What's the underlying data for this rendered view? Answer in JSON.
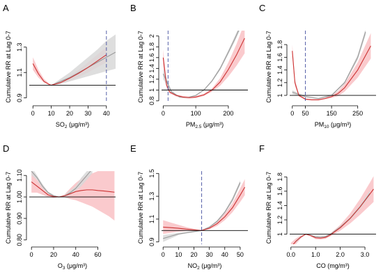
{
  "colors": {
    "red_line": "#cc3333",
    "red_band": "#f8b8bc",
    "gray_line": "#999999",
    "gray_band": "#d8d8d8",
    "ref_line": "#000000",
    "vline": "#5560a8"
  },
  "chart_data": [
    {
      "id": "A",
      "type": "line",
      "letter": "A",
      "ylabel": "Cumulative RR at Lag 0-7",
      "xlabel_main": "SO",
      "xlabel_sub": "2",
      "xlabel_unit": " (μg/m³)",
      "xlim": [
        -2,
        45
      ],
      "ylim": [
        0.86,
        1.43
      ],
      "xticks": [
        0,
        10,
        20,
        30,
        40
      ],
      "yticks": [
        0.9,
        1.1,
        1.3
      ],
      "ref_y": 1.0,
      "vline_x": 40,
      "gray": {
        "x": [
          10,
          15,
          20,
          25,
          30,
          35,
          40,
          45
        ],
        "y": [
          1.0,
          1.03,
          1.06,
          1.1,
          1.14,
          1.18,
          1.22,
          1.26
        ],
        "lo": [
          1.0,
          1.01,
          1.03,
          1.05,
          1.07,
          1.09,
          1.11,
          1.13
        ],
        "hi": [
          1.0,
          1.05,
          1.1,
          1.16,
          1.22,
          1.28,
          1.35,
          1.4
        ]
      },
      "red": {
        "x": [
          0,
          3,
          6,
          9,
          10,
          15,
          20,
          25,
          30,
          35,
          40
        ],
        "y": [
          1.17,
          1.09,
          1.03,
          1.005,
          1.0,
          1.02,
          1.055,
          1.095,
          1.14,
          1.19,
          1.24
        ],
        "lo": [
          1.12,
          1.06,
          1.02,
          1.0,
          1.0,
          1.01,
          1.035,
          1.065,
          1.1,
          1.14,
          1.18
        ],
        "hi": [
          1.22,
          1.12,
          1.05,
          1.01,
          1.0,
          1.03,
          1.07,
          1.12,
          1.18,
          1.24,
          1.3
        ]
      }
    },
    {
      "id": "B",
      "type": "line",
      "letter": "B",
      "ylabel": "Cumulative RR at Lag 0-7",
      "xlabel_main": "PM",
      "xlabel_sub": "2.5",
      "xlabel_unit": " (μg/m³)",
      "xlim": [
        -5,
        260
      ],
      "ylim": [
        0.76,
        2.1
      ],
      "xticks": [
        0,
        100,
        200
      ],
      "yticks": [
        0.8,
        1.0,
        1.2,
        1.4,
        1.6,
        1.8,
        2.0
      ],
      "ref_y": 1.0,
      "vline_x": 15,
      "gray": {
        "x": [
          0,
          25,
          50,
          75,
          100,
          125,
          150,
          175,
          200,
          220,
          235
        ],
        "y": [
          1.3,
          0.97,
          0.87,
          0.86,
          0.9,
          1.0,
          1.17,
          1.4,
          1.7,
          1.95,
          2.15
        ],
        "lo": [
          1.2,
          0.95,
          0.86,
          0.85,
          0.89,
          0.99,
          1.15,
          1.37,
          1.66,
          1.9,
          2.1
        ],
        "hi": [
          1.4,
          0.99,
          0.88,
          0.87,
          0.91,
          1.01,
          1.19,
          1.43,
          1.74,
          2.0,
          2.2
        ]
      },
      "red": {
        "x": [
          0,
          10,
          20,
          40,
          60,
          80,
          100,
          125,
          150,
          175,
          200,
          225,
          250
        ],
        "y": [
          1.6,
          1.1,
          0.96,
          0.9,
          0.87,
          0.86,
          0.87,
          0.91,
          1.0,
          1.15,
          1.38,
          1.65,
          1.96
        ],
        "lo": [
          1.45,
          1.05,
          0.94,
          0.88,
          0.85,
          0.84,
          0.85,
          0.89,
          0.97,
          1.08,
          1.25,
          1.45,
          1.68
        ],
        "hi": [
          1.75,
          1.15,
          0.98,
          0.92,
          0.89,
          0.88,
          0.89,
          0.93,
          1.03,
          1.22,
          1.51,
          1.85,
          2.25
        ]
      }
    },
    {
      "id": "C",
      "type": "line",
      "letter": "C",
      "ylabel": "Cumulative RR at Lag 0-7",
      "xlabel_main": "PM",
      "xlabel_sub": "10",
      "xlabel_unit": " (μg/m³)",
      "xlim": [
        -10,
        320
      ],
      "ylim": [
        0.88,
        2.02
      ],
      "xticks": [
        0,
        50,
        150,
        250
      ],
      "yticks": [
        1.0,
        1.2,
        1.4,
        1.6,
        1.8
      ],
      "ref_y": 1.0,
      "vline_x": 50,
      "gray": {
        "x": [
          0,
          50,
          100,
          150,
          200,
          250,
          280
        ],
        "y": [
          1.05,
          0.98,
          0.95,
          1.0,
          1.2,
          1.6,
          2.0
        ],
        "lo": [
          1.02,
          0.97,
          0.94,
          0.99,
          1.18,
          1.56,
          1.95
        ],
        "hi": [
          1.08,
          0.99,
          0.96,
          1.01,
          1.22,
          1.64,
          2.05
        ]
      },
      "red": {
        "x": [
          0,
          10,
          25,
          50,
          75,
          100,
          125,
          150,
          175,
          200,
          250,
          300
        ],
        "y": [
          1.7,
          1.2,
          1.0,
          0.94,
          0.93,
          0.93,
          0.95,
          0.98,
          1.03,
          1.12,
          1.4,
          1.78
        ],
        "lo": [
          1.6,
          1.15,
          0.98,
          0.93,
          0.92,
          0.92,
          0.94,
          0.96,
          0.99,
          1.06,
          1.28,
          1.58
        ],
        "hi": [
          1.8,
          1.25,
          1.02,
          0.95,
          0.94,
          0.94,
          0.96,
          1.0,
          1.07,
          1.18,
          1.52,
          1.98
        ]
      }
    },
    {
      "id": "D",
      "type": "line",
      "letter": "D",
      "ylabel": "Cumulative RR at Lag 0-7",
      "xlabel_main": "O",
      "xlabel_sub": "3",
      "xlabel_unit": " (μg/m³)",
      "xlim": [
        -2,
        76
      ],
      "ylim": [
        0.78,
        1.12
      ],
      "xticks": [
        0,
        20,
        40,
        60
      ],
      "yticks": [
        0.8,
        0.9,
        1.0,
        1.1
      ],
      "ytick_labels": [
        "0.80",
        "0.90",
        "1.00",
        "1.10"
      ],
      "ref_y": 1.0,
      "vline_x": null,
      "gray": {
        "x": [
          0,
          5,
          10,
          15,
          20,
          25,
          30,
          35,
          40,
          45,
          50,
          55
        ],
        "y": [
          1.12,
          1.09,
          1.05,
          1.02,
          1.005,
          1.0,
          1.005,
          1.02,
          1.04,
          1.07,
          1.1,
          1.13
        ],
        "lo": [
          1.1,
          1.08,
          1.04,
          1.015,
          1.0,
          1.0,
          1.0,
          1.01,
          1.03,
          1.05,
          1.08,
          1.11
        ],
        "hi": [
          1.14,
          1.1,
          1.06,
          1.025,
          1.01,
          1.0,
          1.01,
          1.03,
          1.05,
          1.09,
          1.12,
          1.15
        ]
      },
      "red": {
        "x": [
          0,
          5,
          10,
          15,
          20,
          25,
          30,
          35,
          40,
          45,
          50,
          55,
          60,
          65,
          70,
          75
        ],
        "y": [
          1.07,
          1.05,
          1.03,
          1.01,
          1.002,
          1.0,
          1.005,
          1.015,
          1.025,
          1.03,
          1.033,
          1.033,
          1.03,
          1.028,
          1.025,
          1.022
        ],
        "lo": [
          1.02,
          1.02,
          1.01,
          1.0,
          0.995,
          1.0,
          0.998,
          0.99,
          0.985,
          0.975,
          0.965,
          0.955,
          0.94,
          0.925,
          0.91,
          0.89
        ],
        "hi": [
          1.12,
          1.08,
          1.05,
          1.02,
          1.008,
          1.0,
          1.012,
          1.04,
          1.065,
          1.085,
          1.1,
          1.11,
          1.12,
          1.13,
          1.14,
          1.15
        ]
      }
    },
    {
      "id": "E",
      "type": "line",
      "letter": "E",
      "ylabel": "Cumulative RR at Lag 0-7",
      "xlabel_main": "NO",
      "xlabel_sub": "2",
      "xlabel_unit": " (μg/m³)",
      "xlim": [
        -1,
        55
      ],
      "ylim": [
        0.88,
        1.52
      ],
      "xticks": [
        0,
        10,
        20,
        30,
        40,
        50
      ],
      "yticks": [
        0.9,
        1.1,
        1.3,
        1.5
      ],
      "ref_y": 1.0,
      "vline_x": 25,
      "gray": {
        "x": [
          0,
          5,
          10,
          15,
          20,
          25,
          30,
          35,
          40,
          45,
          50
        ],
        "y": [
          0.93,
          0.95,
          0.97,
          0.98,
          0.99,
          1.0,
          1.03,
          1.08,
          1.16,
          1.27,
          1.42
        ],
        "lo": [
          0.9,
          0.93,
          0.96,
          0.975,
          0.985,
          1.0,
          1.025,
          1.07,
          1.15,
          1.25,
          1.4
        ],
        "hi": [
          0.96,
          0.97,
          0.98,
          0.985,
          0.995,
          1.0,
          1.035,
          1.09,
          1.17,
          1.29,
          1.44
        ]
      },
      "red": {
        "x": [
          0,
          5,
          10,
          15,
          20,
          25,
          30,
          35,
          40,
          45,
          50,
          53
        ],
        "y": [
          1.03,
          1.025,
          1.02,
          1.012,
          1.006,
          1.0,
          1.02,
          1.06,
          1.12,
          1.2,
          1.31,
          1.38
        ],
        "lo": [
          0.97,
          0.98,
          0.99,
          0.995,
          0.998,
          1.0,
          1.01,
          1.04,
          1.09,
          1.16,
          1.25,
          1.31
        ],
        "hi": [
          1.09,
          1.07,
          1.05,
          1.03,
          1.014,
          1.0,
          1.03,
          1.08,
          1.15,
          1.24,
          1.37,
          1.45
        ]
      }
    },
    {
      "id": "F",
      "type": "line",
      "letter": "F",
      "ylabel": "Cumulative RR at Lag 0-7",
      "xlabel_main": "CO",
      "xlabel_sub": "",
      "xlabel_unit": " (mg/m³)",
      "xlim": [
        -0.05,
        3.45
      ],
      "ylim": [
        0.86,
        1.88
      ],
      "xticks": [
        0.0,
        1.0,
        2.0,
        3.0
      ],
      "xtick_labels": [
        "0.0",
        "1.0",
        "2.0",
        "3.0"
      ],
      "yticks": [
        1.0,
        1.2,
        1.4,
        1.6,
        1.8
      ],
      "ref_y": 1.0,
      "vline_x": null,
      "gray": {
        "x": [
          0.2,
          0.4,
          0.6,
          0.8,
          1.0,
          1.2,
          1.4,
          1.6,
          1.8,
          2.0,
          2.4,
          2.8,
          3.2
        ],
        "y": [
          0.9,
          0.96,
          1.0,
          0.985,
          0.965,
          0.96,
          0.97,
          1.0,
          1.05,
          1.1,
          1.22,
          1.38,
          1.57
        ],
        "lo": [
          0.88,
          0.95,
          1.0,
          0.98,
          0.96,
          0.955,
          0.965,
          0.995,
          1.04,
          1.09,
          1.2,
          1.35,
          1.53
        ],
        "hi": [
          0.92,
          0.97,
          1.0,
          0.99,
          0.97,
          0.965,
          0.975,
          1.005,
          1.06,
          1.11,
          1.24,
          1.41,
          1.61
        ]
      },
      "red": {
        "x": [
          0.0,
          0.2,
          0.4,
          0.6,
          0.8,
          1.0,
          1.2,
          1.4,
          1.6,
          1.8,
          2.0,
          2.4,
          2.8,
          3.2,
          3.35
        ],
        "y": [
          0.82,
          0.9,
          0.96,
          1.0,
          0.98,
          0.95,
          0.945,
          0.955,
          0.99,
          1.04,
          1.09,
          1.22,
          1.38,
          1.56,
          1.63
        ],
        "lo": [
          0.76,
          0.86,
          0.94,
          1.0,
          0.97,
          0.93,
          0.925,
          0.935,
          0.97,
          1.01,
          1.05,
          1.15,
          1.27,
          1.4,
          1.45
        ],
        "hi": [
          0.88,
          0.94,
          0.98,
          1.0,
          0.99,
          0.97,
          0.965,
          0.975,
          1.01,
          1.07,
          1.13,
          1.29,
          1.49,
          1.72,
          1.81
        ]
      }
    }
  ]
}
